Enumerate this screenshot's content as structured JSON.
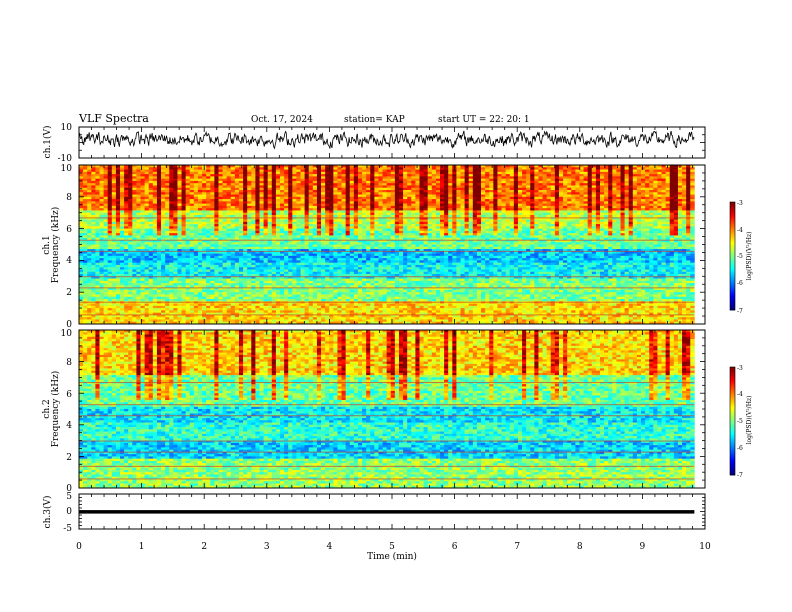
{
  "header": {
    "title": "VLF Spectra",
    "date": "Oct. 17, 2024",
    "station": "station= KAP",
    "start": "start  UT  =    22: 20: 1"
  },
  "chart_data": [
    {
      "type": "line",
      "name": "ch1-waveform",
      "ylabel": "ch.1(V)",
      "ylim": [
        -10,
        10
      ],
      "yticks": [
        "10",
        "-10"
      ],
      "xlim": [
        0,
        10
      ],
      "data_end_min": 9.83
    },
    {
      "type": "heatmap",
      "name": "ch1-spectrogram",
      "ylabel_line1": "ch.1",
      "ylabel_line2": "Frequency  (kHz)",
      "ylim": [
        0,
        10
      ],
      "yticks": [
        "0",
        "2",
        "4",
        "6",
        "8",
        "10"
      ],
      "xlim": [
        0,
        10
      ],
      "data_end_min": 9.83,
      "colorbar": {
        "label": "log(PSD)(V²/Hz)",
        "range": [
          -7,
          -3
        ],
        "ticks": [
          "-3",
          "-4",
          "-5",
          "-6",
          "-7"
        ]
      }
    },
    {
      "type": "heatmap",
      "name": "ch2-spectrogram",
      "ylabel_line1": "ch.2",
      "ylabel_line2": "Frequency  (kHz)",
      "ylim": [
        0,
        10
      ],
      "yticks": [
        "0",
        "2",
        "4",
        "6",
        "8",
        "10"
      ],
      "xlim": [
        0,
        10
      ],
      "data_end_min": 9.83,
      "colorbar": {
        "label": "log(PSD)(V²/Hz)",
        "range": [
          -7,
          -3
        ],
        "ticks": [
          "-3",
          "-4",
          "-5",
          "-6",
          "-7"
        ]
      }
    },
    {
      "type": "line",
      "name": "ch3-waveform",
      "ylabel": "ch.3(V)",
      "ylim": [
        -5,
        5
      ],
      "yticks": [
        "5",
        "0",
        "-5"
      ],
      "xlim": [
        0,
        10
      ],
      "xticks": [
        "0",
        "1",
        "2",
        "3",
        "4",
        "5",
        "6",
        "7",
        "8",
        "9",
        "10"
      ],
      "xlabel": "Time  (min)",
      "data_end_min": 9.83
    }
  ]
}
